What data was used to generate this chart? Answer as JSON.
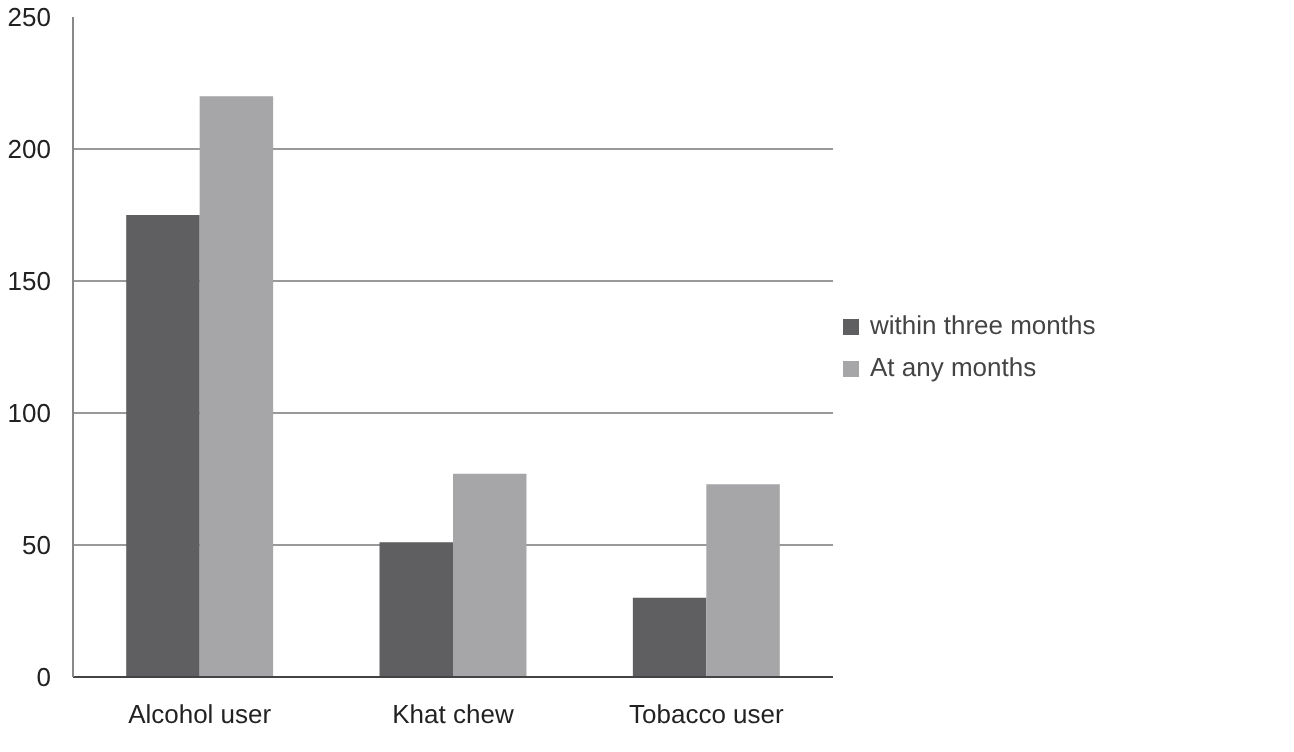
{
  "chart_data": {
    "type": "bar",
    "categories": [
      "Alcohol user",
      "Khat chew",
      "Tobacco user"
    ],
    "series": [
      {
        "name": "within three months",
        "color": "#5f5f62",
        "values": [
          175,
          51,
          30
        ]
      },
      {
        "name": "At any months",
        "color": "#a6a6a8",
        "values": [
          220,
          77,
          73
        ]
      }
    ],
    "ylim": [
      0,
      250
    ],
    "yticks": [
      0,
      50,
      100,
      150,
      200,
      250
    ],
    "grid": "y",
    "legend": "right"
  }
}
